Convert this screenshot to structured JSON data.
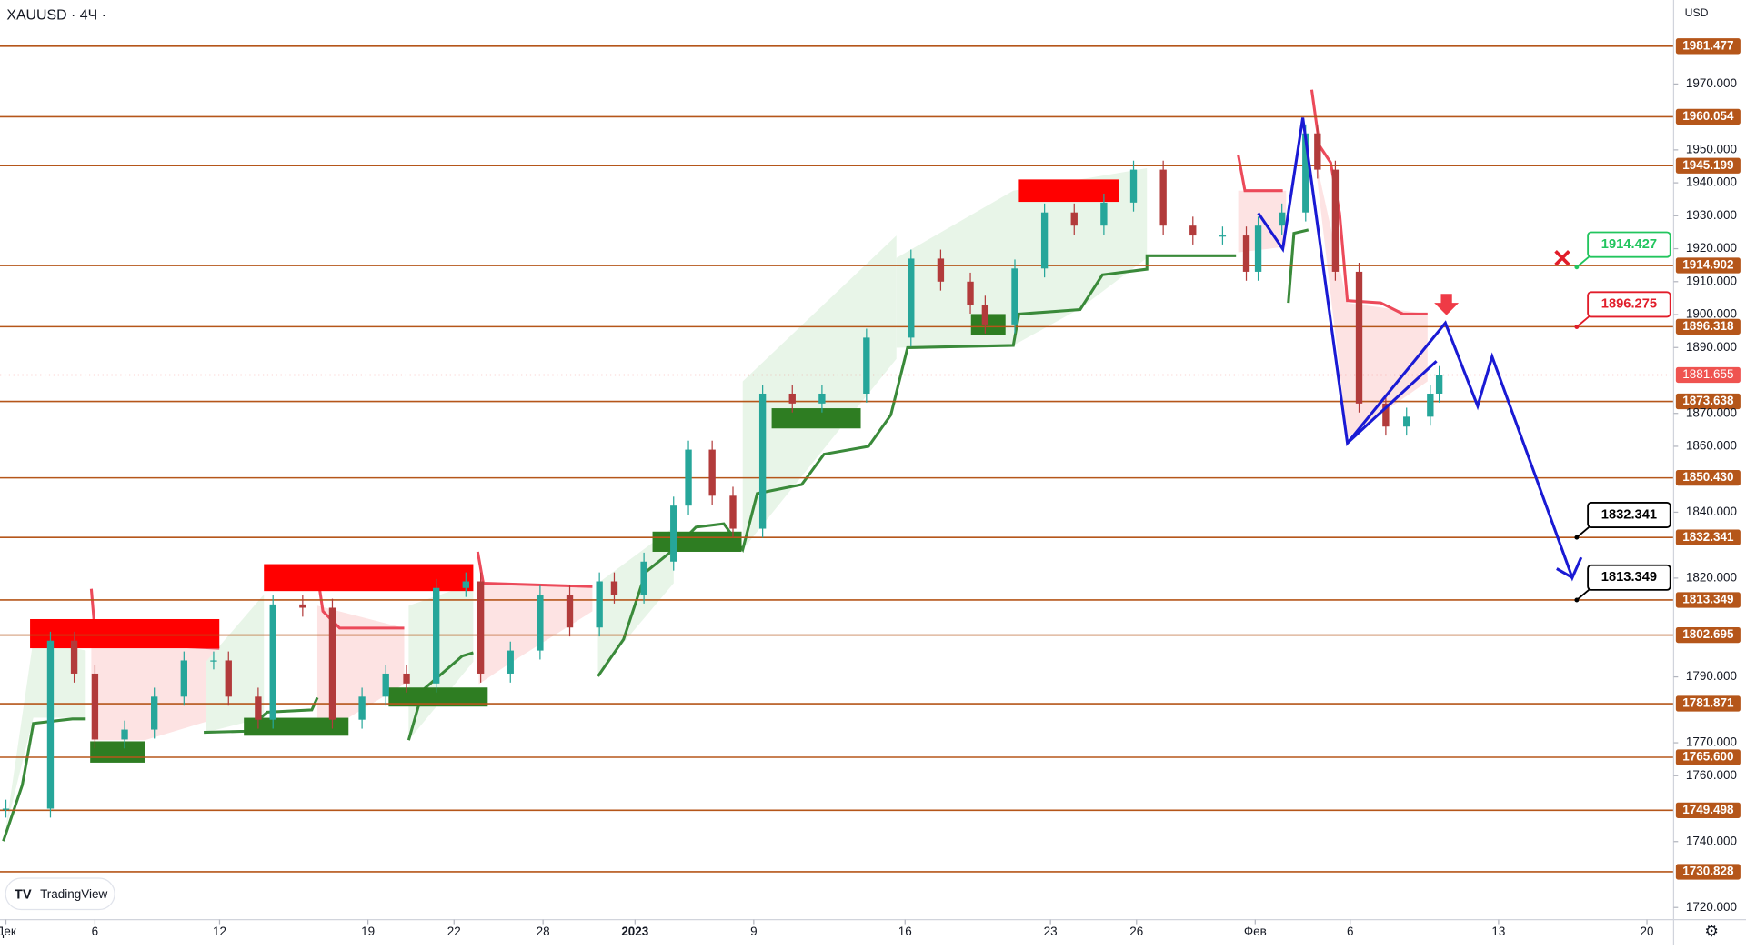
{
  "chart_data": {
    "type": "candlestick",
    "title": "XAUUSD · 4Ч ·",
    "currency": "USD",
    "brand": "TradingView",
    "xlim": [
      -0.2,
      56.2
    ],
    "ylim": [
      1716.3,
      1995.5
    ],
    "xticks": [
      {
        "value": 0,
        "label": "Дек"
      },
      {
        "value": 3.0,
        "label": "6"
      },
      {
        "value": 7.2,
        "label": "12"
      },
      {
        "value": 12.2,
        "label": "19"
      },
      {
        "value": 15.1,
        "label": "22"
      },
      {
        "value": 18.1,
        "label": "28"
      },
      {
        "value": 21.2,
        "label": "2023"
      },
      {
        "value": 25.2,
        "label": "9"
      },
      {
        "value": 30.3,
        "label": "16"
      },
      {
        "value": 35.2,
        "label": "23"
      },
      {
        "value": 38.1,
        "label": "26"
      },
      {
        "value": 42.1,
        "label": "Фев"
      },
      {
        "value": 45.3,
        "label": "6"
      },
      {
        "value": 50.3,
        "label": "13"
      },
      {
        "value": 55.3,
        "label": "20"
      }
    ],
    "yticks": [
      {
        "value": 1720,
        "label": "1720.000"
      },
      {
        "value": 1740,
        "label": "1740.000"
      },
      {
        "value": 1760,
        "label": "1760.000"
      },
      {
        "value": 1770,
        "label": "1770.000"
      },
      {
        "value": 1790,
        "label": "1790.000"
      },
      {
        "value": 1820,
        "label": "1820.000"
      },
      {
        "value": 1840,
        "label": "1840.000"
      },
      {
        "value": 1860,
        "label": "1860.000"
      },
      {
        "value": 1870,
        "label": "1870.000"
      },
      {
        "value": 1890,
        "label": "1890.000"
      },
      {
        "value": 1900,
        "label": "1900.000"
      },
      {
        "value": 1910,
        "label": "1910.000"
      },
      {
        "value": 1920,
        "label": "1920.000"
      },
      {
        "value": 1930,
        "label": "1930.000"
      },
      {
        "value": 1940,
        "label": "1940.000"
      },
      {
        "value": 1950,
        "label": "1950.000"
      },
      {
        "value": 1970,
        "label": "1970.000"
      }
    ],
    "x": [
      0,
      1.5,
      2.3,
      3.0,
      4,
      5,
      6,
      7,
      7.5,
      8.5,
      9,
      10,
      11,
      12,
      12.8,
      13.5,
      14.5,
      15.5,
      16,
      17,
      18,
      19,
      20,
      20.5,
      21.5,
      22.5,
      23,
      23.8,
      24.5,
      25.5,
      26.5,
      27.5,
      29,
      30.5,
      31.5,
      32.5,
      33,
      34,
      35,
      36,
      37,
      38,
      39,
      40,
      41,
      41.8,
      42.2,
      43,
      43.8,
      44.2,
      44.8,
      45.6,
      46.5,
      47.2,
      48,
      48.3
    ],
    "close": [
      1750,
      1801,
      1791,
      1771,
      1774,
      1784,
      1795,
      1795,
      1784,
      1777,
      1812,
      1811,
      1777,
      1784,
      1791,
      1788,
      1817,
      1819,
      1791,
      1798,
      1815,
      1805,
      1819,
      1815,
      1825,
      1842,
      1859,
      1845,
      1835,
      1876,
      1873,
      1876,
      1893,
      1917,
      1910,
      1903,
      1897,
      1914,
      1931,
      1927,
      1934,
      1944,
      1927,
      1924,
      1924,
      1913,
      1927,
      1931,
      1955,
      1944,
      1913,
      1873,
      1866,
      1869,
      1876,
      1881.655
    ],
    "levels": [
      1981.477,
      1960.054,
      1945.199,
      1914.902,
      1896.318,
      1873.638,
      {
        "value": 1850.43,
        "label": "1850.430"
      },
      1832.341,
      1813.349,
      1802.695,
      1781.871,
      {
        "value": 1765.6,
        "label": "1765.600"
      },
      1749.498,
      1730.828
    ],
    "level_color": "#b5561a",
    "current_price": 1881.655,
    "callouts": [
      {
        "value": 1914.427,
        "color": "#22c55e"
      },
      {
        "value": 1896.275,
        "color": "#e11d2a"
      },
      {
        "value": 1832.341,
        "color": "#000000"
      },
      {
        "value": 1813.349,
        "color": "#000000"
      }
    ],
    "up_color": "#26a69a",
    "down_color": "#b23b3b"
  }
}
